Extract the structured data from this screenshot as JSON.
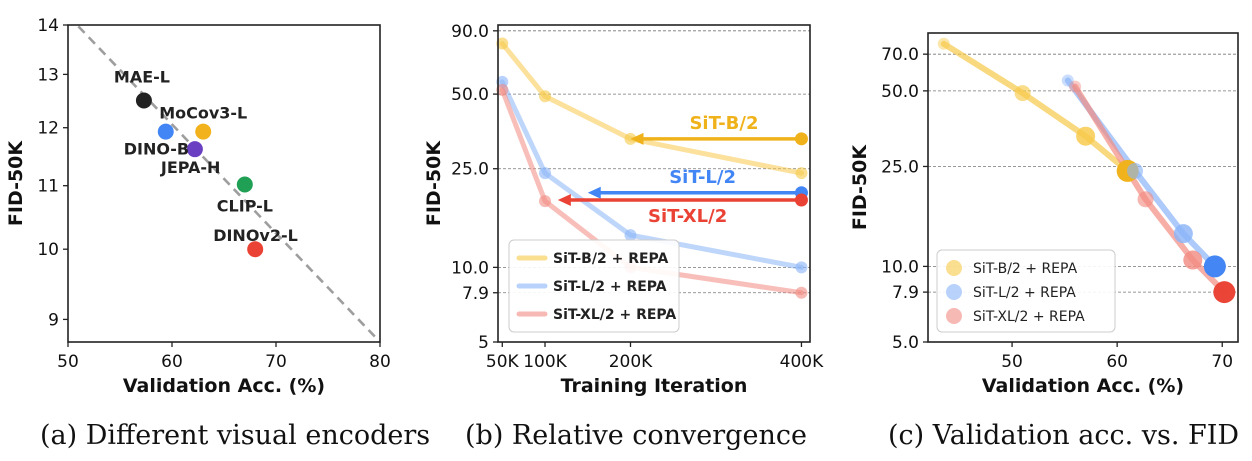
{
  "chart_data": [
    {
      "type": "scatter",
      "caption": "(a) Different visual encoders",
      "xlabel": "Validation Acc. (%)",
      "ylabel": "FID-50K",
      "xlim": [
        50,
        80
      ],
      "ylim": [
        8.7,
        14
      ],
      "y_scale": "log",
      "xticks": [
        "50",
        "60",
        "70",
        "80"
      ],
      "yticks": [
        "9",
        "10",
        "11",
        "12",
        "13",
        "14"
      ],
      "grid": false,
      "trend_line": [
        [
          50,
          14.2
        ],
        [
          80,
          8.7
        ]
      ],
      "points": [
        {
          "label": "MAE-L",
          "x": 57.3,
          "y": 12.5,
          "color": "#222222"
        },
        {
          "label": "MoCov3-L",
          "x": 63.0,
          "y": 11.93,
          "color": "#f2b21c"
        },
        {
          "label": "DINO-B",
          "x": 59.4,
          "y": 11.93,
          "color": "#4285f4"
        },
        {
          "label": "JEPA-H",
          "x": 62.2,
          "y": 11.62,
          "color": "#6a3fc1"
        },
        {
          "label": "CLIP-L",
          "x": 67.0,
          "y": 11.02,
          "color": "#1fa055"
        },
        {
          "label": "DINOv2-L",
          "x": 68.0,
          "y": 10.0,
          "color": "#ea4335"
        }
      ]
    },
    {
      "type": "line",
      "caption": "(b) Relative convergence",
      "xlabel": "Training Iteration",
      "ylabel": "FID-50K",
      "xlim": [
        45000,
        410000
      ],
      "ylim": [
        5,
        95
      ],
      "y_scale": "log",
      "xticks": [
        "50K",
        "100K",
        "200K",
        "400K"
      ],
      "yticks": [
        "5",
        "7.9",
        "10.0",
        "25.0",
        "50.0",
        "90.0"
      ],
      "grid": "horizontal dashed at labeled ticks",
      "legend_position": "lower-left",
      "x": [
        50000,
        100000,
        200000,
        400000
      ],
      "series": [
        {
          "name": "SiT-B/2 + REPA",
          "values": [
            80,
            49,
            33,
            24
          ],
          "color": "#f7c948"
        },
        {
          "name": "SiT-L/2 + REPA",
          "values": [
            56,
            24,
            13.5,
            10.0
          ],
          "color": "#8ab4f8"
        },
        {
          "name": "SiT-XL/2 + REPA",
          "values": [
            52,
            18.5,
            10.0,
            7.9
          ],
          "color": "#f28b82"
        }
      ],
      "arrows": [
        {
          "label": "SiT-B/2",
          "from": 200000,
          "to": 400000,
          "y": 33,
          "color": "#f0b21b"
        },
        {
          "label": "SiT-L/2",
          "from": 150000,
          "to": 400000,
          "y": 20,
          "color": "#4285f4"
        },
        {
          "label": "SiT-XL/2",
          "from": 115000,
          "to": 400000,
          "y": 18.7,
          "color": "#ea4335"
        }
      ]
    },
    {
      "type": "line",
      "caption": "(c) Validation acc. vs. FID",
      "xlabel": "Validation Acc. (%)",
      "ylabel": "FID-50K",
      "xlim": [
        42,
        71.5
      ],
      "ylim": [
        5,
        85
      ],
      "y_scale": "log",
      "xticks": [
        "50",
        "60",
        "70"
      ],
      "yticks": [
        "5.0",
        "7.9",
        "10.0",
        "25.0",
        "50.0",
        "70.0"
      ],
      "grid": "horizontal dashed at labeled ticks",
      "legend_position": "lower-left",
      "series": [
        {
          "name": "SiT-B/2 + REPA",
          "color": "#f7c948",
          "marker_color": "#f0b21b",
          "x": [
            43.5,
            51.0,
            57.0,
            61.0
          ],
          "y": [
            77,
            49,
            33,
            24
          ]
        },
        {
          "name": "SiT-L/2 + REPA",
          "color": "#8ab4f8",
          "marker_color": "#4285f4",
          "x": [
            55.3,
            61.7,
            66.3,
            69.3
          ],
          "y": [
            55,
            24,
            13.5,
            10.0
          ]
        },
        {
          "name": "SiT-XL/2 + REPA",
          "color": "#f28b82",
          "marker_color": "#ea4335",
          "x": [
            56.0,
            62.7,
            67.2,
            70.2
          ],
          "y": [
            52,
            18.5,
            10.6,
            7.9
          ]
        }
      ]
    }
  ]
}
